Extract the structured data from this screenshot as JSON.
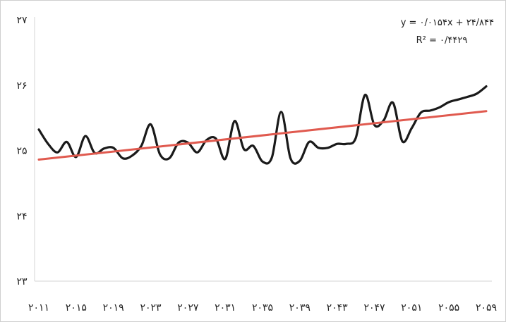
{
  "chart_data": {
    "type": "line",
    "title": "",
    "xlabel": "",
    "ylabel": "",
    "x_ticks": [
      2011,
      2015,
      2019,
      2023,
      2027,
      2031,
      2035,
      2039,
      2043,
      2047,
      2051,
      2055,
      2059
    ],
    "x_tick_labels": [
      "۲۰۱۱",
      "۲۰۱۵",
      "۲۰۱۹",
      "۲۰۲۳",
      "۲۰۲۷",
      "۲۰۳۱",
      "۲۰۳۵",
      "۲۰۳۹",
      "۲۰۴۳",
      "۲۰۴۷",
      "۲۰۵۱",
      "۲۰۵۵",
      "۲۰۵۹"
    ],
    "y_ticks": [
      23,
      24,
      25,
      26,
      27
    ],
    "y_tick_labels": [
      "۲۳",
      "۲۴",
      "۲۵",
      "۲۶",
      "۲۷"
    ],
    "xlim": [
      2011,
      2059
    ],
    "ylim": [
      23,
      27
    ],
    "grid": false,
    "series": [
      {
        "color": "#1a1a1a",
        "x": [
          2011,
          2012,
          2013,
          2014,
          2015,
          2016,
          2017,
          2018,
          2019,
          2020,
          2021,
          2022,
          2023,
          2024,
          2025,
          2026,
          2027,
          2028,
          2029,
          2030,
          2031,
          2032,
          2033,
          2034,
          2035,
          2036,
          2037,
          2038,
          2039,
          2040,
          2041,
          2042,
          2043,
          2044,
          2045,
          2046,
          2047,
          2048,
          2049,
          2050,
          2051,
          2052,
          2053,
          2054,
          2055,
          2056,
          2057,
          2058,
          2059
        ],
        "values": [
          25.32,
          25.1,
          24.97,
          25.13,
          24.9,
          25.22,
          24.96,
          25.03,
          25.04,
          24.88,
          24.92,
          25.07,
          25.4,
          24.94,
          24.88,
          25.12,
          25.12,
          24.97,
          25.16,
          25.18,
          24.87,
          25.45,
          25.02,
          25.07,
          24.83,
          24.89,
          25.59,
          24.88,
          24.84,
          25.13,
          25.04,
          25.04,
          25.1,
          25.1,
          25.19,
          25.85,
          25.39,
          25.46,
          25.73,
          25.14,
          25.34,
          25.58,
          25.61,
          25.66,
          25.74,
          25.78,
          25.82,
          25.87,
          25.98
        ]
      },
      {
        "color": "#e05a4f",
        "x": [
          2011,
          2059
        ],
        "values": [
          24.86,
          25.6
        ]
      }
    ],
    "annotations": {
      "equation": "y = ۰/۰۱۵۴x + ۲۴/۸۴۴",
      "r_squared": "R² = ۰/۴۴۲۹"
    }
  }
}
